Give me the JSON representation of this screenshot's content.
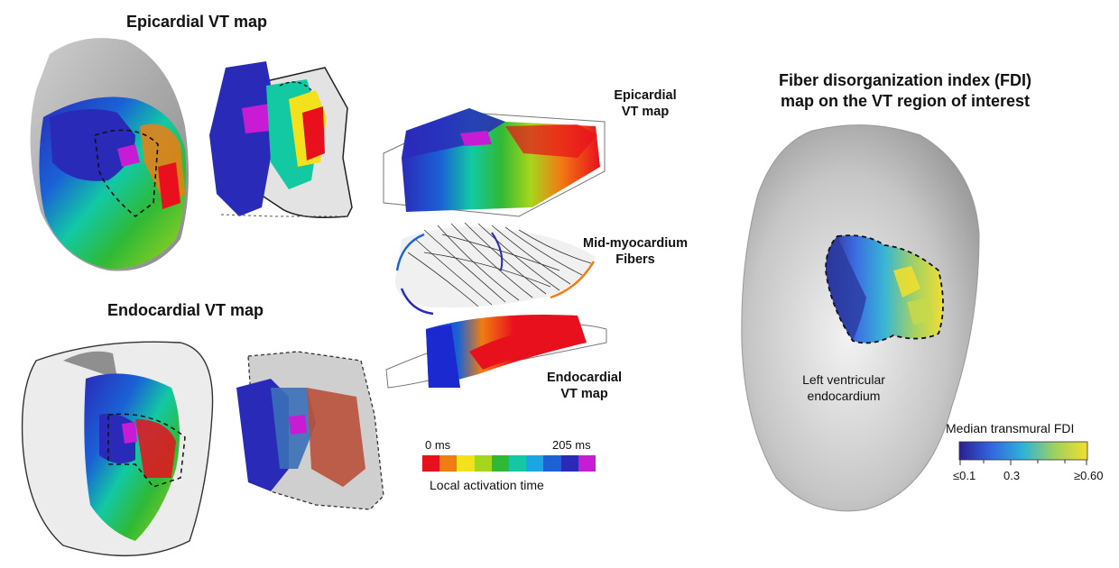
{
  "epicardial": {
    "title": "Epicardial VT map"
  },
  "endocardial": {
    "title": "Endocardial VT map"
  },
  "stack": {
    "epi_label": [
      "Epicardial",
      "VT map"
    ],
    "mid_label": [
      "Mid-myocardium",
      "Fibers"
    ],
    "endo_label": [
      "Endocardial",
      "VT map"
    ]
  },
  "activation_scale": {
    "min_label": "0 ms",
    "max_label": "205 ms",
    "caption": "Local activation time",
    "colors": [
      "#e8101c",
      "#f07d12",
      "#f3e21b",
      "#a6d61c",
      "#2fb936",
      "#12c9a4",
      "#1aa6e0",
      "#1a62d6",
      "#2a2ab8",
      "#c81bd4"
    ]
  },
  "fdi": {
    "title_line1": "Fiber disorganization index (FDI)",
    "title_line2": "map on the VT region of interest",
    "region_label_line1": "Left ventricular",
    "region_label_line2": "endocardium",
    "scale_title": "Median transmural FDI",
    "tick_low": "≤0.1",
    "tick_mid": "0.3",
    "tick_high": "≥0.60"
  }
}
